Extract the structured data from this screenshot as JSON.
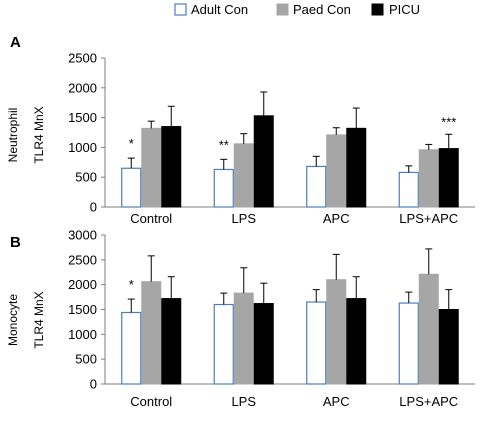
{
  "legend": [
    {
      "label": "Adult Con",
      "color": "#ffffff",
      "stroke": "#4a7ebb"
    },
    {
      "label": "Paed Con",
      "color": "#a6a6a6",
      "stroke": "#a6a6a6"
    },
    {
      "label": "PICU",
      "color": "#000000",
      "stroke": "#000000"
    }
  ],
  "chart_data": [
    {
      "type": "bar",
      "panel_label": "A",
      "row_label": "Neutrophil",
      "ylabel": "TLR4 MnX",
      "ylim": [
        0,
        2500
      ],
      "yticks": [
        0,
        500,
        1000,
        1500,
        2000,
        2500
      ],
      "categories": [
        "Control",
        "LPS",
        "APC",
        "LPS+APC"
      ],
      "series": [
        {
          "name": "Adult Con",
          "values": [
            650,
            630,
            680,
            580
          ],
          "errors": [
            170,
            170,
            170,
            110
          ]
        },
        {
          "name": "Paed Con",
          "values": [
            1320,
            1060,
            1210,
            960
          ],
          "errors": [
            120,
            170,
            120,
            90
          ]
        },
        {
          "name": "PICU",
          "values": [
            1350,
            1530,
            1320,
            980
          ],
          "errors": [
            340,
            400,
            340,
            240
          ]
        }
      ],
      "annotations": [
        "*",
        "**",
        "",
        "***"
      ]
    },
    {
      "type": "bar",
      "panel_label": "B",
      "row_label": "Monocyte",
      "ylabel": "TLR4 MnX",
      "ylim": [
        0,
        3000
      ],
      "yticks": [
        0,
        500,
        1000,
        1500,
        2000,
        2500,
        3000
      ],
      "categories": [
        "Control",
        "LPS",
        "APC",
        "LPS+APC"
      ],
      "series": [
        {
          "name": "Adult Con",
          "values": [
            1440,
            1600,
            1650,
            1630
          ],
          "errors": [
            270,
            230,
            250,
            220
          ]
        },
        {
          "name": "Paed Con",
          "values": [
            2060,
            1830,
            2100,
            2210
          ],
          "errors": [
            520,
            510,
            510,
            510
          ]
        },
        {
          "name": "PICU",
          "values": [
            1720,
            1620,
            1720,
            1500
          ],
          "errors": [
            440,
            410,
            440,
            400
          ]
        }
      ],
      "annotations": [
        "*",
        "",
        "",
        ""
      ]
    }
  ]
}
